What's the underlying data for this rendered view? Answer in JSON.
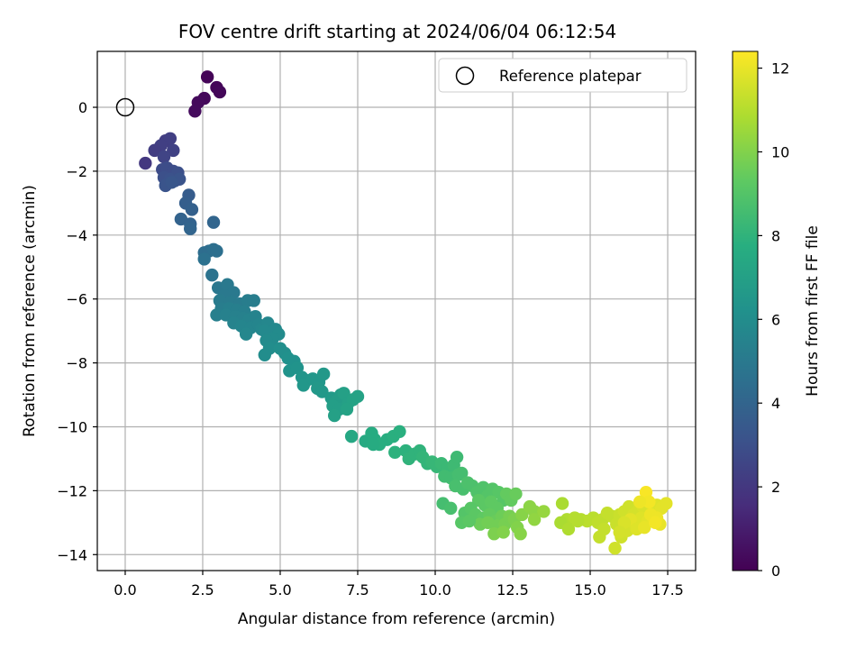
{
  "chart_data": {
    "type": "scatter",
    "title": "FOV centre drift starting at 2024/06/04 06:12:54",
    "xlabel": "Angular distance from reference (arcmin)",
    "ylabel": "Rotation from reference (arcmin)",
    "colorbar_label": "Hours from first FF file",
    "xlim": [
      -0.9,
      18.4
    ],
    "ylim": [
      -14.5,
      1.75
    ],
    "clim": [
      0,
      12.4
    ],
    "xticks": [
      0.0,
      2.5,
      5.0,
      7.5,
      10.0,
      12.5,
      15.0,
      17.5
    ],
    "xtick_labels": [
      "0.0",
      "2.5",
      "5.0",
      "7.5",
      "10.0",
      "12.5",
      "15.0",
      "17.5"
    ],
    "yticks": [
      0,
      -2,
      -4,
      -6,
      -8,
      -10,
      -12,
      -14
    ],
    "ytick_labels": [
      "0",
      "−2",
      "−4",
      "−6",
      "−8",
      "−10",
      "−12",
      "−14"
    ],
    "cticks": [
      0,
      2,
      4,
      6,
      8,
      10,
      12
    ],
    "ctick_labels": [
      "0",
      "2",
      "4",
      "6",
      "8",
      "10",
      "12"
    ],
    "colormap": "viridis",
    "grid": true,
    "legend_position": "top-right",
    "reference": {
      "name": "Reference platepar",
      "x": 0.0,
      "y": 0.0
    },
    "points": [
      [
        2.65,
        0.95,
        0.1
      ],
      [
        2.95,
        0.62,
        0.15
      ],
      [
        3.05,
        0.48,
        0.2
      ],
      [
        2.55,
        0.28,
        0.25
      ],
      [
        2.35,
        0.15,
        0.3
      ],
      [
        2.25,
        -0.12,
        0.35
      ],
      [
        1.3,
        -1.05,
        2.2
      ],
      [
        1.45,
        -0.98,
        2.3
      ],
      [
        1.15,
        -1.2,
        2.3
      ],
      [
        1.55,
        -1.35,
        2.4
      ],
      [
        0.95,
        -1.35,
        2.2
      ],
      [
        1.25,
        -1.55,
        2.5
      ],
      [
        0.65,
        -1.75,
        2.0
      ],
      [
        1.2,
        -1.95,
        2.8
      ],
      [
        1.35,
        -1.9,
        2.9
      ],
      [
        1.55,
        -2.0,
        2.9
      ],
      [
        1.7,
        -2.05,
        3.0
      ],
      [
        1.25,
        -2.2,
        3.0
      ],
      [
        1.45,
        -2.25,
        3.1
      ],
      [
        1.6,
        -2.3,
        3.1
      ],
      [
        1.75,
        -2.25,
        3.2
      ],
      [
        1.3,
        -2.45,
        3.2
      ],
      [
        1.5,
        -2.35,
        3.3
      ],
      [
        2.05,
        -2.75,
        3.6
      ],
      [
        1.95,
        -3.0,
        3.7
      ],
      [
        2.15,
        -3.2,
        3.8
      ],
      [
        1.8,
        -3.5,
        3.9
      ],
      [
        2.1,
        -3.65,
        3.9
      ],
      [
        2.85,
        -3.6,
        4.0
      ],
      [
        2.1,
        -3.8,
        4.0
      ],
      [
        2.55,
        -4.55,
        4.4
      ],
      [
        2.7,
        -4.5,
        4.4
      ],
      [
        2.85,
        -4.45,
        4.5
      ],
      [
        2.95,
        -4.5,
        4.5
      ],
      [
        2.55,
        -4.75,
        4.6
      ],
      [
        2.8,
        -5.25,
        4.7
      ],
      [
        3.0,
        -5.65,
        4.9
      ],
      [
        3.3,
        -5.55,
        5.0
      ],
      [
        3.5,
        -5.8,
        5.0
      ],
      [
        3.2,
        -5.9,
        5.0
      ],
      [
        3.05,
        -6.05,
        5.1
      ],
      [
        3.4,
        -6.1,
        5.1
      ],
      [
        3.7,
        -6.15,
        5.1
      ],
      [
        3.95,
        -6.05,
        5.2
      ],
      [
        4.15,
        -6.05,
        5.2
      ],
      [
        3.1,
        -6.3,
        5.2
      ],
      [
        3.35,
        -6.3,
        5.3
      ],
      [
        3.6,
        -6.35,
        5.3
      ],
      [
        3.85,
        -6.4,
        5.3
      ],
      [
        2.95,
        -6.5,
        5.3
      ],
      [
        3.25,
        -6.5,
        5.4
      ],
      [
        3.55,
        -6.55,
        5.4
      ],
      [
        3.8,
        -6.6,
        5.4
      ],
      [
        4.0,
        -6.65,
        5.5
      ],
      [
        4.2,
        -6.55,
        5.5
      ],
      [
        3.5,
        -6.75,
        5.5
      ],
      [
        3.75,
        -6.85,
        5.6
      ],
      [
        4.05,
        -6.9,
        5.6
      ],
      [
        4.3,
        -6.8,
        5.6
      ],
      [
        4.4,
        -6.95,
        5.7
      ],
      [
        3.9,
        -7.1,
        5.7
      ],
      [
        4.6,
        -6.75,
        5.7
      ],
      [
        4.5,
        -7.0,
        5.8
      ],
      [
        4.7,
        -7.05,
        5.8
      ],
      [
        4.85,
        -6.95,
        5.8
      ],
      [
        4.95,
        -7.1,
        5.9
      ],
      [
        4.75,
        -7.25,
        5.9
      ],
      [
        4.55,
        -7.3,
        5.9
      ],
      [
        4.65,
        -7.55,
        6.0
      ],
      [
        4.5,
        -7.75,
        6.0
      ],
      [
        5.0,
        -7.55,
        6.1
      ],
      [
        5.15,
        -7.7,
        6.1
      ],
      [
        5.25,
        -7.85,
        6.2
      ],
      [
        5.45,
        -7.95,
        6.2
      ],
      [
        5.3,
        -8.25,
        6.3
      ],
      [
        5.55,
        -8.15,
        6.3
      ],
      [
        5.7,
        -8.45,
        6.4
      ],
      [
        5.85,
        -8.55,
        6.4
      ],
      [
        5.75,
        -8.7,
        6.5
      ],
      [
        6.05,
        -8.5,
        6.5
      ],
      [
        6.25,
        -8.6,
        6.5
      ],
      [
        6.4,
        -8.35,
        6.6
      ],
      [
        6.2,
        -8.8,
        6.6
      ],
      [
        6.35,
        -8.9,
        6.6
      ],
      [
        6.65,
        -9.1,
        6.7
      ],
      [
        6.8,
        -9.2,
        6.8
      ],
      [
        6.95,
        -9.0,
        6.8
      ],
      [
        6.7,
        -9.35,
        6.9
      ],
      [
        6.9,
        -9.45,
        6.9
      ],
      [
        6.75,
        -9.65,
        7.0
      ],
      [
        7.05,
        -8.95,
        7.0
      ],
      [
        7.2,
        -9.25,
        7.0
      ],
      [
        7.35,
        -9.15,
        7.1
      ],
      [
        7.5,
        -9.05,
        7.1
      ],
      [
        7.15,
        -9.45,
        7.1
      ],
      [
        7.3,
        -10.3,
        7.4
      ],
      [
        7.75,
        -10.45,
        7.5
      ],
      [
        7.95,
        -10.2,
        7.6
      ],
      [
        8.05,
        -10.4,
        7.6
      ],
      [
        8.2,
        -10.55,
        7.7
      ],
      [
        8.0,
        -10.55,
        7.6
      ],
      [
        8.45,
        -10.4,
        7.7
      ],
      [
        8.65,
        -10.3,
        7.8
      ],
      [
        8.85,
        -10.15,
        7.8
      ],
      [
        8.7,
        -10.8,
        7.9
      ],
      [
        9.05,
        -10.75,
        7.9
      ],
      [
        9.15,
        -11.0,
        8.0
      ],
      [
        9.35,
        -10.85,
        8.0
      ],
      [
        9.5,
        -10.75,
        8.0
      ],
      [
        9.6,
        -10.95,
        8.1
      ],
      [
        9.75,
        -11.15,
        8.1
      ],
      [
        9.9,
        -11.1,
        8.2
      ],
      [
        10.05,
        -11.25,
        8.2
      ],
      [
        10.2,
        -11.15,
        8.3
      ],
      [
        10.4,
        -11.3,
        8.3
      ],
      [
        10.6,
        -11.2,
        8.4
      ],
      [
        10.7,
        -10.95,
        8.4
      ],
      [
        10.3,
        -11.55,
        8.5
      ],
      [
        10.5,
        -11.6,
        8.5
      ],
      [
        10.75,
        -11.5,
        8.6
      ],
      [
        10.85,
        -11.45,
        8.6
      ],
      [
        10.65,
        -11.85,
        8.7
      ],
      [
        10.9,
        -11.95,
        8.7
      ],
      [
        11.05,
        -11.75,
        8.8
      ],
      [
        11.2,
        -11.85,
        8.8
      ],
      [
        11.35,
        -12.05,
        8.9
      ],
      [
        11.55,
        -11.9,
        8.9
      ],
      [
        11.7,
        -12.15,
        9.0
      ],
      [
        11.85,
        -11.95,
        9.0
      ],
      [
        12.05,
        -12.05,
        9.1
      ],
      [
        12.2,
        -12.3,
        9.1
      ],
      [
        11.4,
        -12.3,
        9.2
      ],
      [
        11.6,
        -12.45,
        9.2
      ],
      [
        11.8,
        -12.35,
        9.3
      ],
      [
        12.0,
        -12.55,
        9.3
      ],
      [
        12.3,
        -12.1,
        9.4
      ],
      [
        12.45,
        -12.3,
        9.4
      ],
      [
        12.6,
        -12.1,
        9.5
      ],
      [
        10.25,
        -12.4,
        8.6
      ],
      [
        10.5,
        -12.55,
        8.7
      ],
      [
        10.95,
        -12.7,
        9.0
      ],
      [
        11.15,
        -12.55,
        9.1
      ],
      [
        11.3,
        -12.75,
        9.2
      ],
      [
        11.55,
        -12.85,
        9.3
      ],
      [
        11.75,
        -12.75,
        9.4
      ],
      [
        11.95,
        -12.95,
        9.5
      ],
      [
        12.15,
        -12.8,
        9.6
      ],
      [
        11.45,
        -13.05,
        9.6
      ],
      [
        11.7,
        -13.0,
        9.7
      ],
      [
        12.0,
        -13.1,
        9.7
      ],
      [
        12.25,
        -13.05,
        9.8
      ],
      [
        12.4,
        -12.8,
        9.8
      ],
      [
        12.55,
        -12.9,
        9.9
      ],
      [
        11.9,
        -13.35,
        9.9
      ],
      [
        12.2,
        -13.3,
        10.0
      ],
      [
        12.65,
        -13.15,
        10.0
      ],
      [
        12.8,
        -12.75,
        10.1
      ],
      [
        12.75,
        -13.35,
        10.1
      ],
      [
        13.05,
        -12.5,
        10.2
      ],
      [
        13.2,
        -12.65,
        10.2
      ],
      [
        10.85,
        -13.0,
        9.1
      ],
      [
        11.1,
        -12.95,
        9.2
      ],
      [
        14.1,
        -12.4,
        10.8
      ],
      [
        14.25,
        -12.9,
        10.9
      ],
      [
        14.05,
        -13.0,
        10.8
      ],
      [
        14.5,
        -12.85,
        11.0
      ],
      [
        14.7,
        -12.9,
        11.0
      ],
      [
        14.9,
        -12.95,
        11.1
      ],
      [
        15.1,
        -12.85,
        11.1
      ],
      [
        15.25,
        -13.0,
        11.2
      ],
      [
        15.4,
        -12.9,
        11.2
      ],
      [
        15.55,
        -12.7,
        11.3
      ],
      [
        15.7,
        -12.8,
        11.3
      ],
      [
        15.85,
        -13.05,
        11.4
      ],
      [
        15.95,
        -12.75,
        11.4
      ],
      [
        16.1,
        -12.65,
        11.5
      ],
      [
        16.25,
        -12.5,
        11.5
      ],
      [
        16.4,
        -12.75,
        11.6
      ],
      [
        16.55,
        -12.6,
        11.6
      ],
      [
        16.7,
        -12.5,
        11.7
      ],
      [
        16.85,
        -12.55,
        11.7
      ],
      [
        17.0,
        -12.7,
        11.8
      ],
      [
        17.15,
        -12.45,
        11.8
      ],
      [
        17.3,
        -12.55,
        11.9
      ],
      [
        17.45,
        -12.4,
        11.9
      ],
      [
        15.3,
        -13.45,
        11.3
      ],
      [
        15.45,
        -13.2,
        11.3
      ],
      [
        15.8,
        -13.8,
        11.5
      ],
      [
        16.0,
        -13.45,
        11.5
      ],
      [
        16.2,
        -13.25,
        11.6
      ],
      [
        16.45,
        -13.05,
        11.7
      ],
      [
        16.65,
        -12.85,
        11.8
      ],
      [
        16.85,
        -12.95,
        11.9
      ],
      [
        17.05,
        -12.9,
        12.0
      ],
      [
        17.25,
        -13.05,
        12.0
      ],
      [
        16.3,
        -12.9,
        11.9
      ],
      [
        16.5,
        -13.2,
        11.8
      ],
      [
        16.75,
        -13.15,
        12.0
      ],
      [
        16.95,
        -12.75,
        12.1
      ],
      [
        17.15,
        -12.85,
        12.1
      ],
      [
        16.8,
        -12.05,
        12.3
      ],
      [
        16.9,
        -12.35,
        12.2
      ],
      [
        16.1,
        -13.0,
        11.7
      ],
      [
        15.95,
        -13.3,
        11.6
      ],
      [
        13.2,
        -12.9,
        10.3
      ],
      [
        13.5,
        -12.65,
        10.4
      ],
      [
        14.3,
        -13.2,
        10.9
      ],
      [
        14.6,
        -12.95,
        11.0
      ],
      [
        16.6,
        -12.35,
        12.1
      ],
      [
        17.1,
        -13.0,
        12.2
      ]
    ]
  }
}
